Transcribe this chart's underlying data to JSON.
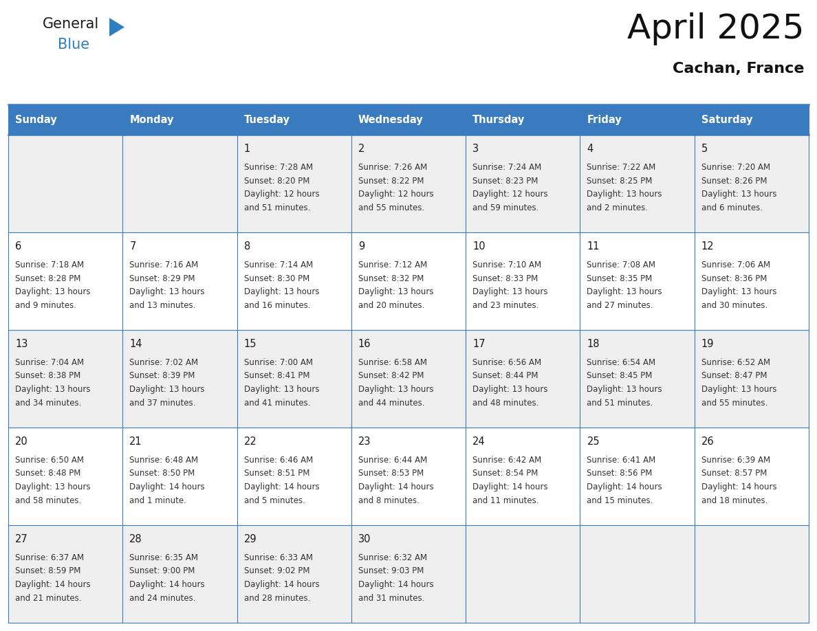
{
  "title": "April 2025",
  "subtitle": "Cachan, France",
  "header_bg_color": "#3A7BBF",
  "header_text_color": "#FFFFFF",
  "row_bg_1": "#EFEFEF",
  "row_bg_2": "#FFFFFF",
  "cell_text_color": "#333333",
  "day_number_color": "#1A1A1A",
  "grid_color": "#3A7BBF",
  "days_of_week": [
    "Sunday",
    "Monday",
    "Tuesday",
    "Wednesday",
    "Thursday",
    "Friday",
    "Saturday"
  ],
  "weeks": [
    [
      {
        "day": "",
        "lines": []
      },
      {
        "day": "",
        "lines": []
      },
      {
        "day": "1",
        "lines": [
          "Sunrise: 7:28 AM",
          "Sunset: 8:20 PM",
          "Daylight: 12 hours",
          "and 51 minutes."
        ]
      },
      {
        "day": "2",
        "lines": [
          "Sunrise: 7:26 AM",
          "Sunset: 8:22 PM",
          "Daylight: 12 hours",
          "and 55 minutes."
        ]
      },
      {
        "day": "3",
        "lines": [
          "Sunrise: 7:24 AM",
          "Sunset: 8:23 PM",
          "Daylight: 12 hours",
          "and 59 minutes."
        ]
      },
      {
        "day": "4",
        "lines": [
          "Sunrise: 7:22 AM",
          "Sunset: 8:25 PM",
          "Daylight: 13 hours",
          "and 2 minutes."
        ]
      },
      {
        "day": "5",
        "lines": [
          "Sunrise: 7:20 AM",
          "Sunset: 8:26 PM",
          "Daylight: 13 hours",
          "and 6 minutes."
        ]
      }
    ],
    [
      {
        "day": "6",
        "lines": [
          "Sunrise: 7:18 AM",
          "Sunset: 8:28 PM",
          "Daylight: 13 hours",
          "and 9 minutes."
        ]
      },
      {
        "day": "7",
        "lines": [
          "Sunrise: 7:16 AM",
          "Sunset: 8:29 PM",
          "Daylight: 13 hours",
          "and 13 minutes."
        ]
      },
      {
        "day": "8",
        "lines": [
          "Sunrise: 7:14 AM",
          "Sunset: 8:30 PM",
          "Daylight: 13 hours",
          "and 16 minutes."
        ]
      },
      {
        "day": "9",
        "lines": [
          "Sunrise: 7:12 AM",
          "Sunset: 8:32 PM",
          "Daylight: 13 hours",
          "and 20 minutes."
        ]
      },
      {
        "day": "10",
        "lines": [
          "Sunrise: 7:10 AM",
          "Sunset: 8:33 PM",
          "Daylight: 13 hours",
          "and 23 minutes."
        ]
      },
      {
        "day": "11",
        "lines": [
          "Sunrise: 7:08 AM",
          "Sunset: 8:35 PM",
          "Daylight: 13 hours",
          "and 27 minutes."
        ]
      },
      {
        "day": "12",
        "lines": [
          "Sunrise: 7:06 AM",
          "Sunset: 8:36 PM",
          "Daylight: 13 hours",
          "and 30 minutes."
        ]
      }
    ],
    [
      {
        "day": "13",
        "lines": [
          "Sunrise: 7:04 AM",
          "Sunset: 8:38 PM",
          "Daylight: 13 hours",
          "and 34 minutes."
        ]
      },
      {
        "day": "14",
        "lines": [
          "Sunrise: 7:02 AM",
          "Sunset: 8:39 PM",
          "Daylight: 13 hours",
          "and 37 minutes."
        ]
      },
      {
        "day": "15",
        "lines": [
          "Sunrise: 7:00 AM",
          "Sunset: 8:41 PM",
          "Daylight: 13 hours",
          "and 41 minutes."
        ]
      },
      {
        "day": "16",
        "lines": [
          "Sunrise: 6:58 AM",
          "Sunset: 8:42 PM",
          "Daylight: 13 hours",
          "and 44 minutes."
        ]
      },
      {
        "day": "17",
        "lines": [
          "Sunrise: 6:56 AM",
          "Sunset: 8:44 PM",
          "Daylight: 13 hours",
          "and 48 minutes."
        ]
      },
      {
        "day": "18",
        "lines": [
          "Sunrise: 6:54 AM",
          "Sunset: 8:45 PM",
          "Daylight: 13 hours",
          "and 51 minutes."
        ]
      },
      {
        "day": "19",
        "lines": [
          "Sunrise: 6:52 AM",
          "Sunset: 8:47 PM",
          "Daylight: 13 hours",
          "and 55 minutes."
        ]
      }
    ],
    [
      {
        "day": "20",
        "lines": [
          "Sunrise: 6:50 AM",
          "Sunset: 8:48 PM",
          "Daylight: 13 hours",
          "and 58 minutes."
        ]
      },
      {
        "day": "21",
        "lines": [
          "Sunrise: 6:48 AM",
          "Sunset: 8:50 PM",
          "Daylight: 14 hours",
          "and 1 minute."
        ]
      },
      {
        "day": "22",
        "lines": [
          "Sunrise: 6:46 AM",
          "Sunset: 8:51 PM",
          "Daylight: 14 hours",
          "and 5 minutes."
        ]
      },
      {
        "day": "23",
        "lines": [
          "Sunrise: 6:44 AM",
          "Sunset: 8:53 PM",
          "Daylight: 14 hours",
          "and 8 minutes."
        ]
      },
      {
        "day": "24",
        "lines": [
          "Sunrise: 6:42 AM",
          "Sunset: 8:54 PM",
          "Daylight: 14 hours",
          "and 11 minutes."
        ]
      },
      {
        "day": "25",
        "lines": [
          "Sunrise: 6:41 AM",
          "Sunset: 8:56 PM",
          "Daylight: 14 hours",
          "and 15 minutes."
        ]
      },
      {
        "day": "26",
        "lines": [
          "Sunrise: 6:39 AM",
          "Sunset: 8:57 PM",
          "Daylight: 14 hours",
          "and 18 minutes."
        ]
      }
    ],
    [
      {
        "day": "27",
        "lines": [
          "Sunrise: 6:37 AM",
          "Sunset: 8:59 PM",
          "Daylight: 14 hours",
          "and 21 minutes."
        ]
      },
      {
        "day": "28",
        "lines": [
          "Sunrise: 6:35 AM",
          "Sunset: 9:00 PM",
          "Daylight: 14 hours",
          "and 24 minutes."
        ]
      },
      {
        "day": "29",
        "lines": [
          "Sunrise: 6:33 AM",
          "Sunset: 9:02 PM",
          "Daylight: 14 hours",
          "and 28 minutes."
        ]
      },
      {
        "day": "30",
        "lines": [
          "Sunrise: 6:32 AM",
          "Sunset: 9:03 PM",
          "Daylight: 14 hours",
          "and 31 minutes."
        ]
      },
      {
        "day": "",
        "lines": []
      },
      {
        "day": "",
        "lines": []
      },
      {
        "day": "",
        "lines": []
      }
    ]
  ],
  "logo_general_color": "#1A1A1A",
  "logo_blue_color": "#2E7EC2",
  "logo_triangle_color": "#2E7EC2",
  "fig_width": 11.88,
  "fig_height": 9.18,
  "dpi": 100
}
